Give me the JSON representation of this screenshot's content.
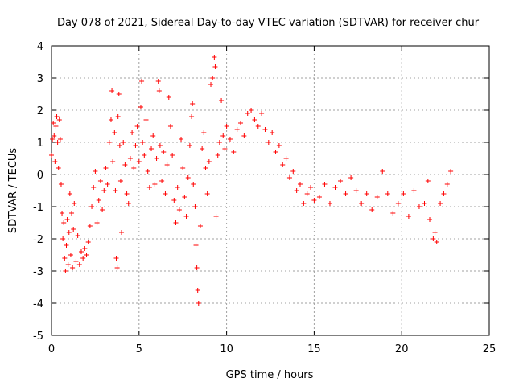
{
  "chart_data": {
    "type": "scatter",
    "title": "Day 078 of 2021, Sidereal Day-to-day VTEC variation (SDTVAR) for receiver chur",
    "xlabel": "GPS time / hours",
    "ylabel": "SDTVAR / TECUs",
    "xlim": [
      0,
      25
    ],
    "ylim": [
      -5,
      4
    ],
    "xticks": [
      0,
      5,
      10,
      15,
      20,
      25
    ],
    "yticks": [
      -5,
      -4,
      -3,
      -2,
      -1,
      0,
      1,
      2,
      3,
      4
    ],
    "xtick_labels": [
      "0",
      "5",
      "10",
      "15",
      "20",
      "25"
    ],
    "ytick_labels": [
      "-5",
      "-4",
      "-3",
      "-2",
      "-1",
      "0",
      "1",
      "2",
      "3",
      "4"
    ],
    "grid": true,
    "marker": "+",
    "series": [
      {
        "name": "SDTVAR",
        "color": "#ff0000",
        "points": [
          [
            0.0,
            0.6
          ],
          [
            0.05,
            1.1
          ],
          [
            0.1,
            1.6
          ],
          [
            0.15,
            1.2
          ],
          [
            0.2,
            0.4
          ],
          [
            0.25,
            1.5
          ],
          [
            0.3,
            1.8
          ],
          [
            0.35,
            1.0
          ],
          [
            0.4,
            0.2
          ],
          [
            0.45,
            1.7
          ],
          [
            0.5,
            1.1
          ],
          [
            0.55,
            -0.3
          ],
          [
            0.6,
            -1.2
          ],
          [
            0.65,
            -2.0
          ],
          [
            0.7,
            -1.5
          ],
          [
            0.75,
            -2.6
          ],
          [
            0.8,
            -3.0
          ],
          [
            0.85,
            -2.2
          ],
          [
            0.9,
            -1.4
          ],
          [
            0.95,
            -2.8
          ],
          [
            1.0,
            -1.8
          ],
          [
            1.05,
            -0.6
          ],
          [
            1.1,
            -2.5
          ],
          [
            1.15,
            -1.2
          ],
          [
            1.2,
            -2.9
          ],
          [
            1.25,
            -1.7
          ],
          [
            1.3,
            -0.9
          ],
          [
            1.4,
            -2.7
          ],
          [
            1.5,
            -1.9
          ],
          [
            1.6,
            -2.8
          ],
          [
            1.7,
            -2.4
          ],
          [
            1.8,
            -2.6
          ],
          [
            1.9,
            -2.3
          ],
          [
            2.0,
            -2.5
          ],
          [
            2.1,
            -2.1
          ],
          [
            2.2,
            -1.6
          ],
          [
            2.3,
            -1.0
          ],
          [
            2.4,
            -0.4
          ],
          [
            2.5,
            0.1
          ],
          [
            2.6,
            -1.5
          ],
          [
            2.7,
            -0.8
          ],
          [
            2.8,
            -0.2
          ],
          [
            2.9,
            -1.1
          ],
          [
            3.0,
            -0.5
          ],
          [
            3.1,
            0.2
          ],
          [
            3.2,
            -0.3
          ],
          [
            3.3,
            1.0
          ],
          [
            3.4,
            1.7
          ],
          [
            3.45,
            2.6
          ],
          [
            3.5,
            0.4
          ],
          [
            3.6,
            1.3
          ],
          [
            3.65,
            -0.5
          ],
          [
            3.7,
            -2.6
          ],
          [
            3.75,
            -2.9
          ],
          [
            3.8,
            1.8
          ],
          [
            3.85,
            2.5
          ],
          [
            3.9,
            0.9
          ],
          [
            3.95,
            -0.2
          ],
          [
            4.0,
            -1.8
          ],
          [
            4.1,
            1.0
          ],
          [
            4.2,
            0.3
          ],
          [
            4.3,
            -0.6
          ],
          [
            4.4,
            -0.9
          ],
          [
            4.5,
            0.5
          ],
          [
            4.6,
            1.3
          ],
          [
            4.7,
            0.2
          ],
          [
            4.8,
            0.9
          ],
          [
            4.9,
            1.5
          ],
          [
            5.0,
            0.4
          ],
          [
            5.1,
            2.1
          ],
          [
            5.15,
            2.9
          ],
          [
            5.2,
            1.0
          ],
          [
            5.3,
            0.6
          ],
          [
            5.4,
            1.7
          ],
          [
            5.5,
            0.1
          ],
          [
            5.6,
            -0.4
          ],
          [
            5.7,
            0.8
          ],
          [
            5.8,
            1.2
          ],
          [
            5.9,
            -0.3
          ],
          [
            6.0,
            0.5
          ],
          [
            6.1,
            2.9
          ],
          [
            6.15,
            2.6
          ],
          [
            6.2,
            0.9
          ],
          [
            6.3,
            -0.2
          ],
          [
            6.4,
            0.7
          ],
          [
            6.5,
            -0.6
          ],
          [
            6.6,
            0.3
          ],
          [
            6.7,
            2.4
          ],
          [
            6.8,
            1.5
          ],
          [
            6.9,
            0.6
          ],
          [
            7.0,
            -0.8
          ],
          [
            7.1,
            -1.5
          ],
          [
            7.2,
            -0.4
          ],
          [
            7.3,
            -1.1
          ],
          [
            7.4,
            1.1
          ],
          [
            7.5,
            0.2
          ],
          [
            7.6,
            -0.7
          ],
          [
            7.7,
            -1.3
          ],
          [
            7.8,
            -0.1
          ],
          [
            7.9,
            0.9
          ],
          [
            8.0,
            1.8
          ],
          [
            8.05,
            2.2
          ],
          [
            8.1,
            -0.3
          ],
          [
            8.2,
            -1.0
          ],
          [
            8.25,
            -2.2
          ],
          [
            8.3,
            -2.9
          ],
          [
            8.35,
            -3.6
          ],
          [
            8.4,
            -4.0
          ],
          [
            8.5,
            -1.6
          ],
          [
            8.6,
            0.8
          ],
          [
            8.7,
            1.3
          ],
          [
            8.8,
            0.2
          ],
          [
            8.9,
            -0.6
          ],
          [
            9.0,
            0.4
          ],
          [
            9.1,
            2.8
          ],
          [
            9.2,
            3.0
          ],
          [
            9.3,
            3.65
          ],
          [
            9.35,
            3.35
          ],
          [
            9.4,
            -1.3
          ],
          [
            9.5,
            0.6
          ],
          [
            9.6,
            1.0
          ],
          [
            9.7,
            2.3
          ],
          [
            9.8,
            1.2
          ],
          [
            9.9,
            0.8
          ],
          [
            10.0,
            1.5
          ],
          [
            10.2,
            1.1
          ],
          [
            10.4,
            0.7
          ],
          [
            10.6,
            1.4
          ],
          [
            10.8,
            1.6
          ],
          [
            11.0,
            1.2
          ],
          [
            11.2,
            1.9
          ],
          [
            11.4,
            2.0
          ],
          [
            11.6,
            1.7
          ],
          [
            11.8,
            1.5
          ],
          [
            12.0,
            1.9
          ],
          [
            12.2,
            1.4
          ],
          [
            12.4,
            1.0
          ],
          [
            12.6,
            1.3
          ],
          [
            12.8,
            0.7
          ],
          [
            13.0,
            0.9
          ],
          [
            13.2,
            0.3
          ],
          [
            13.4,
            0.5
          ],
          [
            13.6,
            -0.1
          ],
          [
            13.8,
            0.1
          ],
          [
            14.0,
            -0.5
          ],
          [
            14.2,
            -0.3
          ],
          [
            14.4,
            -0.9
          ],
          [
            14.6,
            -0.6
          ],
          [
            14.8,
            -0.4
          ],
          [
            15.0,
            -0.8
          ],
          [
            15.3,
            -0.7
          ],
          [
            15.6,
            -0.3
          ],
          [
            15.9,
            -0.9
          ],
          [
            16.2,
            -0.4
          ],
          [
            16.5,
            -0.2
          ],
          [
            16.8,
            -0.6
          ],
          [
            17.1,
            -0.1
          ],
          [
            17.4,
            -0.5
          ],
          [
            17.7,
            -0.9
          ],
          [
            18.0,
            -0.6
          ],
          [
            18.3,
            -1.1
          ],
          [
            18.6,
            -0.7
          ],
          [
            18.9,
            0.1
          ],
          [
            19.2,
            -0.6
          ],
          [
            19.5,
            -1.2
          ],
          [
            19.8,
            -0.9
          ],
          [
            20.1,
            -0.6
          ],
          [
            20.4,
            -1.3
          ],
          [
            20.7,
            -0.5
          ],
          [
            21.0,
            -1.0
          ],
          [
            21.3,
            -0.9
          ],
          [
            21.5,
            -0.2
          ],
          [
            21.6,
            -1.4
          ],
          [
            21.8,
            -2.0
          ],
          [
            21.9,
            -1.8
          ],
          [
            22.0,
            -2.1
          ],
          [
            22.2,
            -0.9
          ],
          [
            22.4,
            -0.6
          ],
          [
            22.6,
            -0.3
          ],
          [
            22.8,
            0.1
          ]
        ]
      }
    ]
  }
}
